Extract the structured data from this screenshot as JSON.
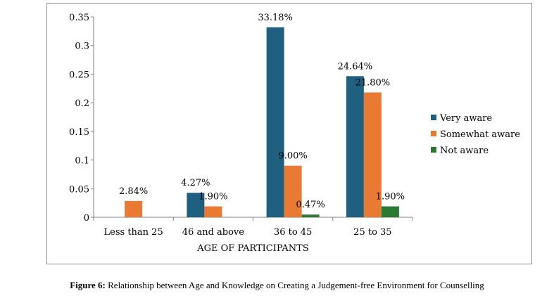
{
  "chart_data": {
    "type": "bar",
    "categories": [
      "Less than 25",
      "46 and above",
      "36 to 45",
      "25 to 35"
    ],
    "series": [
      {
        "name": "Very aware",
        "color": "#1f5f7f",
        "values": [
          0,
          0.0427,
          0.3318,
          0.2464
        ],
        "labels": [
          "",
          "4.27%",
          "33.18%",
          "24.64%"
        ]
      },
      {
        "name": "Somewhat aware",
        "color": "#e87a34",
        "values": [
          0.0284,
          0.019,
          0.09,
          0.218
        ],
        "labels": [
          "2.84%",
          "1.90%",
          "9.00%",
          "21.80%"
        ]
      },
      {
        "name": "Not aware",
        "color": "#2a7a33",
        "values": [
          0,
          0,
          0.0047,
          0.019
        ],
        "labels": [
          "",
          "",
          "0.47%",
          "1.90%"
        ]
      }
    ],
    "xlabel": "AGE OF PARTICIPANTS",
    "ylabel": "",
    "ylim": [
      0,
      0.35
    ],
    "yticks": [
      "0",
      "0.05",
      "0.1",
      "0.15",
      "0.2",
      "0.25",
      "0.3",
      "0.35"
    ],
    "grid": false,
    "legend_position": "right"
  },
  "caption": {
    "prefix": "Figure 6:",
    "text": " Relationship between Age and Knowledge on Creating a Judgement-free Environment for Counselling"
  }
}
